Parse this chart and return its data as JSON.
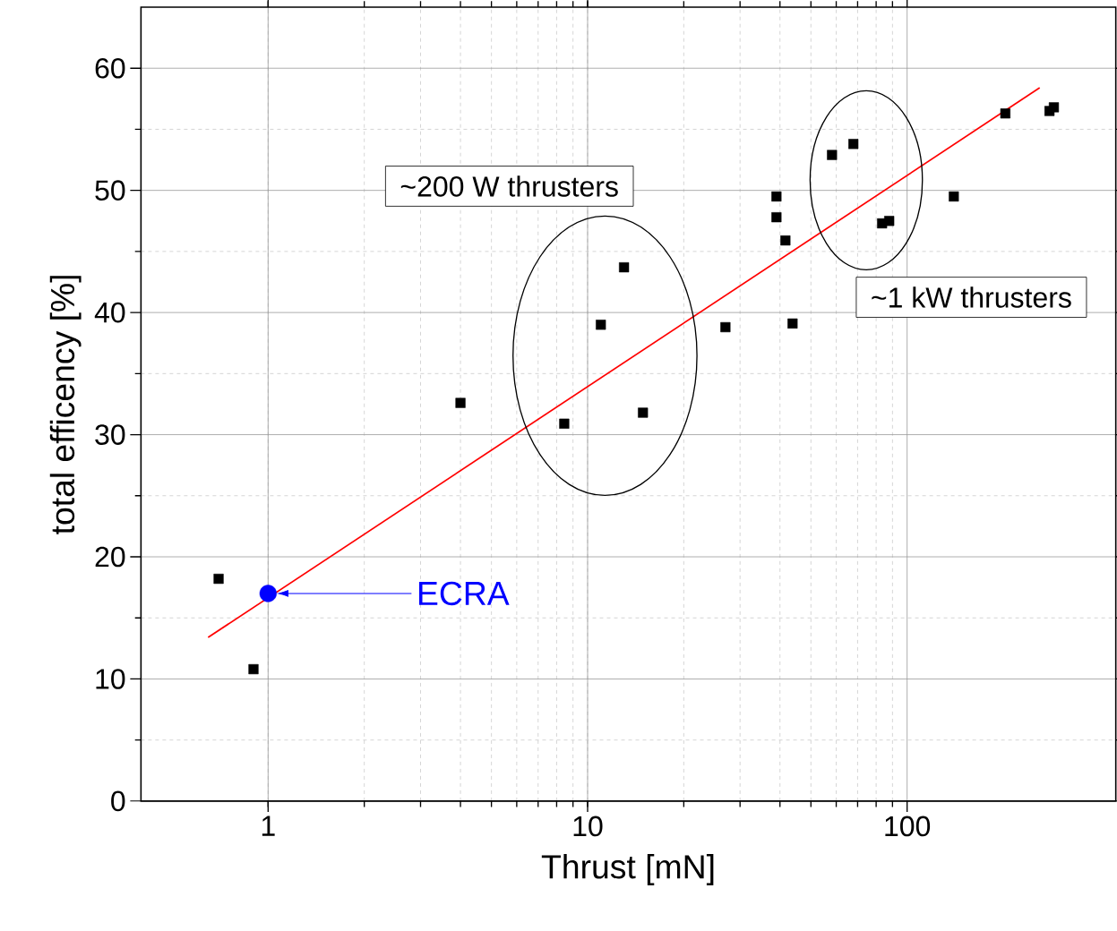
{
  "chart_data": {
    "type": "scatter",
    "xlabel": "Thrust [mN]",
    "ylabel": "total efficency [%]",
    "log": "x",
    "grid": true,
    "xlim": [
      0.4,
      450
    ],
    "xticks": [
      1,
      10,
      100
    ],
    "ylim": [
      0,
      65
    ],
    "yticks": [
      0,
      10,
      20,
      30,
      40,
      50,
      60
    ],
    "series": [
      {
        "marker": "square",
        "color": "#000000",
        "x": [
          0.7,
          0.9,
          4.0,
          8.45,
          11.0,
          13.0,
          14.9,
          27.0,
          39.0,
          39.0,
          41.6,
          43.8,
          58.2,
          67.9,
          83.5,
          87.9,
          140,
          203,
          279,
          288
        ],
        "values": [
          18.2,
          10.8,
          32.6,
          30.9,
          39.0,
          43.7,
          31.8,
          38.8,
          49.5,
          47.8,
          45.9,
          39.1,
          52.9,
          53.8,
          47.3,
          47.5,
          49.5,
          56.3,
          56.5,
          56.8
        ]
      },
      {
        "marker": "circle",
        "color": "#0000ff",
        "x": [
          1.0
        ],
        "values": [
          17.0
        ]
      },
      {
        "type": "line",
        "marker": "none",
        "color": "#ff0000",
        "x": [
          0.649,
          260
        ],
        "values": [
          13.4,
          58.4
        ]
      }
    ],
    "annotations": [
      "ECRA",
      "~200 W thrusters",
      "~1 kW thrusters"
    ]
  }
}
